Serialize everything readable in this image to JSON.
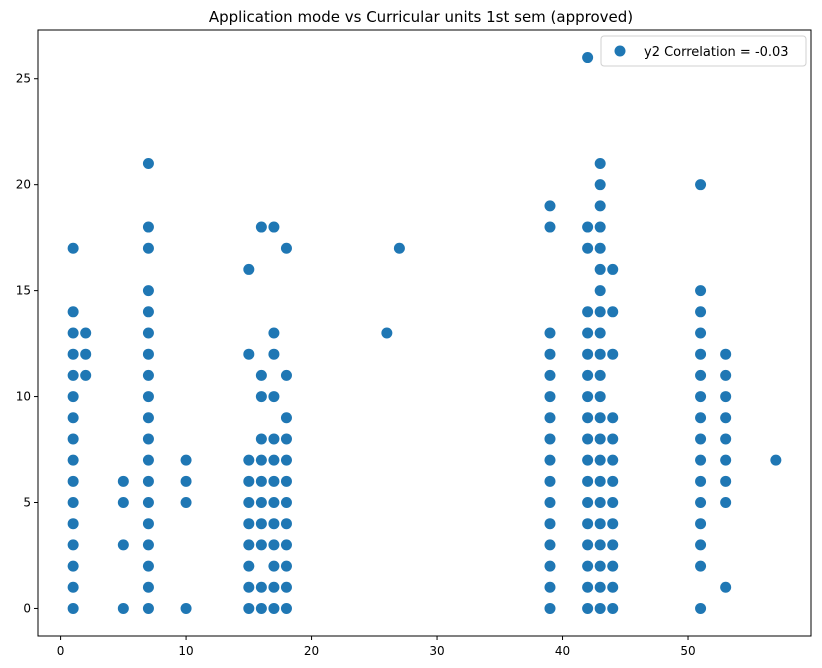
{
  "chart_data": {
    "type": "scatter",
    "title": "Application mode vs Curricular units 1st sem (approved)",
    "xlabel": "",
    "ylabel": "",
    "xlim": [
      -1.8,
      59.8
    ],
    "ylim": [
      -1.3,
      27.3
    ],
    "xticks": [
      0,
      10,
      20,
      30,
      40,
      50
    ],
    "yticks": [
      0,
      5,
      10,
      15,
      20,
      25
    ],
    "grid": false,
    "legend_position": "top-right",
    "marker_color": "#1f77b4",
    "series": [
      {
        "name": "y2 Correlation = -0.03",
        "points": [
          [
            1,
            0
          ],
          [
            1,
            1
          ],
          [
            1,
            2
          ],
          [
            1,
            3
          ],
          [
            1,
            4
          ],
          [
            1,
            5
          ],
          [
            1,
            6
          ],
          [
            1,
            7
          ],
          [
            1,
            8
          ],
          [
            1,
            9
          ],
          [
            1,
            10
          ],
          [
            1,
            11
          ],
          [
            1,
            12
          ],
          [
            1,
            13
          ],
          [
            1,
            14
          ],
          [
            1,
            17
          ],
          [
            2,
            11
          ],
          [
            2,
            12
          ],
          [
            2,
            13
          ],
          [
            5,
            0
          ],
          [
            5,
            3
          ],
          [
            5,
            5
          ],
          [
            5,
            6
          ],
          [
            7,
            0
          ],
          [
            7,
            1
          ],
          [
            7,
            2
          ],
          [
            7,
            3
          ],
          [
            7,
            4
          ],
          [
            7,
            5
          ],
          [
            7,
            6
          ],
          [
            7,
            7
          ],
          [
            7,
            8
          ],
          [
            7,
            9
          ],
          [
            7,
            10
          ],
          [
            7,
            11
          ],
          [
            7,
            12
          ],
          [
            7,
            13
          ],
          [
            7,
            14
          ],
          [
            7,
            15
          ],
          [
            7,
            17
          ],
          [
            7,
            18
          ],
          [
            7,
            21
          ],
          [
            10,
            0
          ],
          [
            10,
            5
          ],
          [
            10,
            6
          ],
          [
            10,
            7
          ],
          [
            15,
            0
          ],
          [
            15,
            1
          ],
          [
            15,
            2
          ],
          [
            15,
            3
          ],
          [
            15,
            4
          ],
          [
            15,
            5
          ],
          [
            15,
            6
          ],
          [
            15,
            7
          ],
          [
            15,
            12
          ],
          [
            15,
            16
          ],
          [
            16,
            0
          ],
          [
            16,
            1
          ],
          [
            16,
            3
          ],
          [
            16,
            4
          ],
          [
            16,
            5
          ],
          [
            16,
            6
          ],
          [
            16,
            7
          ],
          [
            16,
            8
          ],
          [
            16,
            10
          ],
          [
            16,
            11
          ],
          [
            16,
            18
          ],
          [
            17,
            0
          ],
          [
            17,
            1
          ],
          [
            17,
            2
          ],
          [
            17,
            3
          ],
          [
            17,
            4
          ],
          [
            17,
            5
          ],
          [
            17,
            6
          ],
          [
            17,
            7
          ],
          [
            17,
            8
          ],
          [
            17,
            10
          ],
          [
            17,
            12
          ],
          [
            17,
            13
          ],
          [
            17,
            18
          ],
          [
            18,
            0
          ],
          [
            18,
            1
          ],
          [
            18,
            2
          ],
          [
            18,
            3
          ],
          [
            18,
            4
          ],
          [
            18,
            5
          ],
          [
            18,
            6
          ],
          [
            18,
            7
          ],
          [
            18,
            8
          ],
          [
            18,
            9
          ],
          [
            18,
            11
          ],
          [
            18,
            17
          ],
          [
            26,
            13
          ],
          [
            27,
            17
          ],
          [
            39,
            0
          ],
          [
            39,
            1
          ],
          [
            39,
            2
          ],
          [
            39,
            3
          ],
          [
            39,
            4
          ],
          [
            39,
            5
          ],
          [
            39,
            6
          ],
          [
            39,
            7
          ],
          [
            39,
            8
          ],
          [
            39,
            9
          ],
          [
            39,
            10
          ],
          [
            39,
            11
          ],
          [
            39,
            12
          ],
          [
            39,
            13
          ],
          [
            39,
            18
          ],
          [
            39,
            19
          ],
          [
            42,
            0
          ],
          [
            42,
            1
          ],
          [
            42,
            2
          ],
          [
            42,
            3
          ],
          [
            42,
            4
          ],
          [
            42,
            5
          ],
          [
            42,
            6
          ],
          [
            42,
            7
          ],
          [
            42,
            8
          ],
          [
            42,
            9
          ],
          [
            42,
            10
          ],
          [
            42,
            11
          ],
          [
            42,
            12
          ],
          [
            42,
            13
          ],
          [
            42,
            14
          ],
          [
            42,
            17
          ],
          [
            42,
            18
          ],
          [
            42,
            26
          ],
          [
            43,
            0
          ],
          [
            43,
            1
          ],
          [
            43,
            2
          ],
          [
            43,
            3
          ],
          [
            43,
            4
          ],
          [
            43,
            5
          ],
          [
            43,
            6
          ],
          [
            43,
            7
          ],
          [
            43,
            8
          ],
          [
            43,
            9
          ],
          [
            43,
            10
          ],
          [
            43,
            11
          ],
          [
            43,
            12
          ],
          [
            43,
            13
          ],
          [
            43,
            14
          ],
          [
            43,
            15
          ],
          [
            43,
            16
          ],
          [
            43,
            17
          ],
          [
            43,
            18
          ],
          [
            43,
            19
          ],
          [
            43,
            20
          ],
          [
            43,
            21
          ],
          [
            44,
            0
          ],
          [
            44,
            1
          ],
          [
            44,
            2
          ],
          [
            44,
            3
          ],
          [
            44,
            4
          ],
          [
            44,
            5
          ],
          [
            44,
            6
          ],
          [
            44,
            7
          ],
          [
            44,
            8
          ],
          [
            44,
            9
          ],
          [
            44,
            12
          ],
          [
            44,
            14
          ],
          [
            44,
            16
          ],
          [
            51,
            0
          ],
          [
            51,
            2
          ],
          [
            51,
            3
          ],
          [
            51,
            4
          ],
          [
            51,
            5
          ],
          [
            51,
            6
          ],
          [
            51,
            7
          ],
          [
            51,
            8
          ],
          [
            51,
            9
          ],
          [
            51,
            10
          ],
          [
            51,
            11
          ],
          [
            51,
            12
          ],
          [
            51,
            13
          ],
          [
            51,
            14
          ],
          [
            51,
            15
          ],
          [
            51,
            20
          ],
          [
            53,
            1
          ],
          [
            53,
            5
          ],
          [
            53,
            6
          ],
          [
            53,
            7
          ],
          [
            53,
            8
          ],
          [
            53,
            9
          ],
          [
            53,
            10
          ],
          [
            53,
            11
          ],
          [
            53,
            12
          ],
          [
            57,
            7
          ]
        ]
      }
    ]
  }
}
